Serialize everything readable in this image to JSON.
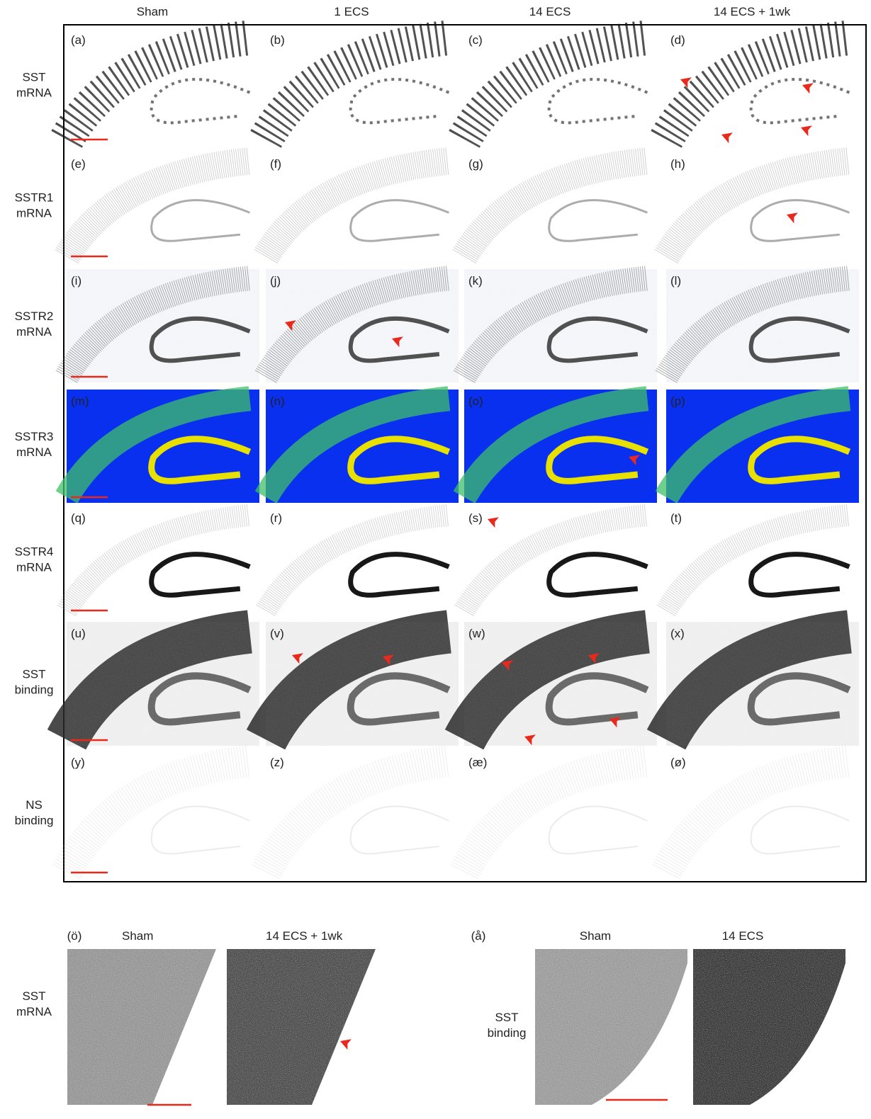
{
  "column_headers": [
    "Sham",
    "1 ECS",
    "14 ECS",
    "14 ECS + 1wk"
  ],
  "rows": [
    {
      "label": [
        "SST",
        "mRNA"
      ],
      "panels": [
        "(a)",
        "(b)",
        "(c)",
        "(d)"
      ]
    },
    {
      "label": [
        "SSTR1",
        "mRNA"
      ],
      "panels": [
        "(e)",
        "(f)",
        "(g)",
        "(h)"
      ]
    },
    {
      "label": [
        "SSTR2",
        "mRNA"
      ],
      "panels": [
        "(i)",
        "(j)",
        "(k)",
        "(l)"
      ]
    },
    {
      "label": [
        "SSTR3",
        "mRNA"
      ],
      "panels": [
        "(m)",
        "(n)",
        "(o)",
        "(p)"
      ]
    },
    {
      "label": [
        "SSTR4",
        "mRNA"
      ],
      "panels": [
        "(q)",
        "(r)",
        "(s)",
        "(t)"
      ]
    },
    {
      "label": [
        "SST",
        "binding"
      ],
      "panels": [
        "(u)",
        "(v)",
        "(w)",
        "(x)"
      ]
    },
    {
      "label": [
        "NS",
        "binding"
      ],
      "panels": [
        "(y)",
        "(z)",
        "(æ)",
        "(ø)"
      ]
    }
  ],
  "insets": [
    {
      "letter": "(ö)",
      "columns": [
        "Sham",
        "14 ECS + 1wk"
      ],
      "row_label": [
        "SST",
        "mRNA"
      ]
    },
    {
      "letter": "(å)",
      "columns": [
        "Sham",
        "14 ECS"
      ],
      "row_label": [
        "SST",
        "binding"
      ]
    }
  ]
}
